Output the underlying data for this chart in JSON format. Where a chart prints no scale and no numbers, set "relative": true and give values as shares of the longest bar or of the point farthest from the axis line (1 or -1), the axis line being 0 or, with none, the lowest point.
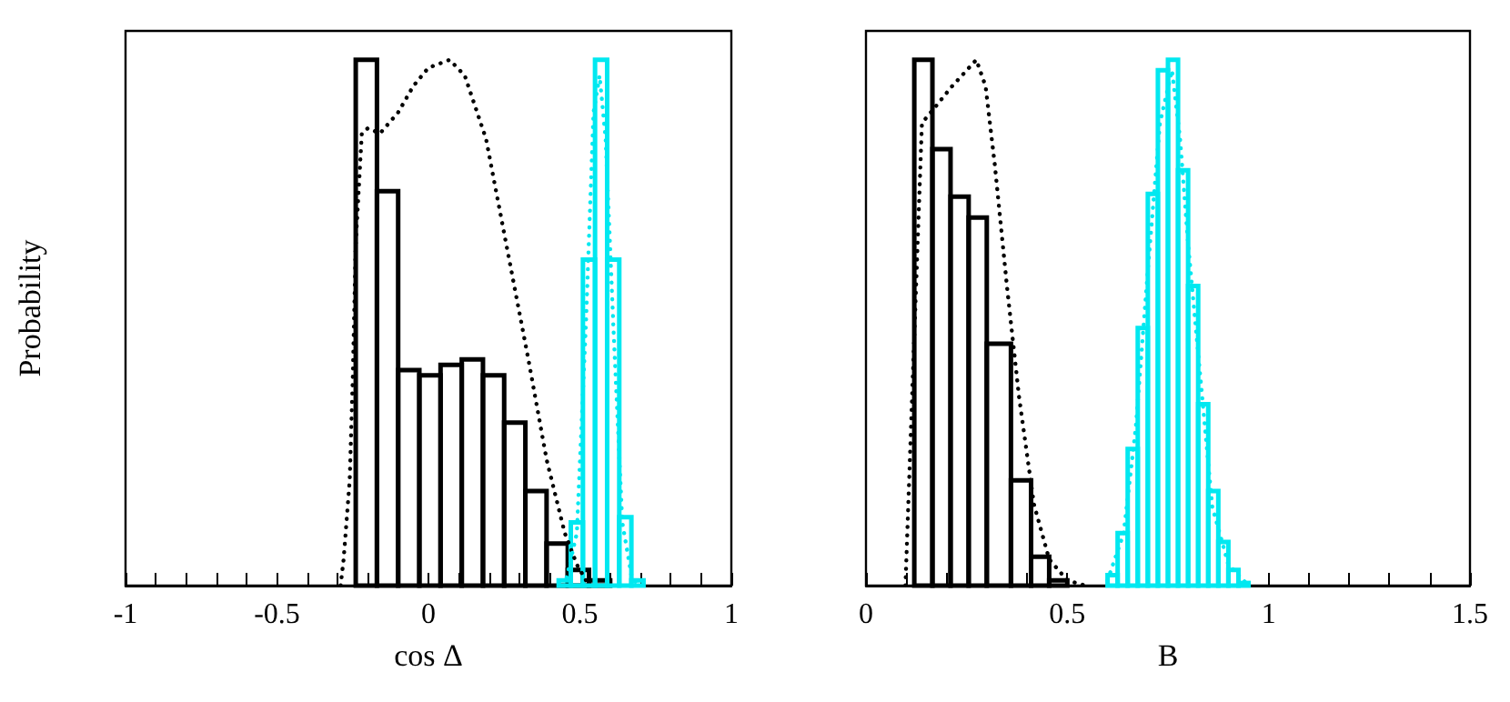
{
  "chart_data": [
    {
      "type": "histogram",
      "xlabel": "cos Δ",
      "ylabel": "Probability",
      "relative": true,
      "tick_labels": "x",
      "marker": "none",
      "xlim": [
        -1,
        1
      ],
      "xticks": [
        -1,
        {
          "value": -0.9,
          "label": null
        },
        {
          "value": -0.8,
          "label": null
        },
        {
          "value": -0.7,
          "label": null
        },
        {
          "value": -0.6,
          "label": null
        },
        -0.5,
        {
          "value": -0.4,
          "label": null
        },
        {
          "value": -0.3,
          "label": null
        },
        {
          "value": -0.2,
          "label": null
        },
        {
          "value": -0.1,
          "label": null
        },
        0,
        {
          "value": 0.1,
          "label": null
        },
        {
          "value": 0.2,
          "label": null
        },
        {
          "value": 0.3,
          "label": null
        },
        {
          "value": 0.4,
          "label": null
        },
        0.5,
        {
          "value": 0.6,
          "label": null
        },
        {
          "value": 0.7,
          "label": null
        },
        {
          "value": 0.8,
          "label": null
        },
        {
          "value": 0.9,
          "label": null
        },
        1
      ],
      "series": [
        {
          "color": "#000000",
          "bins": [
            -0.24,
            -0.17,
            -0.1,
            -0.03,
            0.04,
            0.11,
            0.18,
            0.25,
            0.32,
            0.39,
            0.46,
            0.53,
            0.6
          ],
          "values": [
            1.0,
            0.75,
            0.41,
            0.4,
            0.42,
            0.43,
            0.4,
            0.31,
            0.18,
            0.08,
            0.03,
            0.01
          ]
        },
        {
          "color": "#00e8f0",
          "bins": [
            0.43,
            0.47,
            0.51,
            0.55,
            0.59,
            0.63,
            0.67,
            0.71
          ],
          "values": [
            0.01,
            0.12,
            0.62,
            1.0,
            0.62,
            0.13,
            0.01
          ]
        },
        {
          "type": "line",
          "line_style": "dotted",
          "color": "#000000",
          "x": [
            -0.29,
            -0.28,
            -0.26,
            -0.25,
            -0.24,
            -0.22,
            -0.2,
            -0.16,
            -0.1,
            -0.05,
            0,
            0.07,
            0.12,
            0.19,
            0.26,
            0.33,
            0.39,
            0.45,
            0.49,
            0.53
          ],
          "values": [
            0,
            0.05,
            0.2,
            0.39,
            0.65,
            0.86,
            0.87,
            0.86,
            0.9,
            0.95,
            0.985,
            1.0,
            0.97,
            0.85,
            0.64,
            0.43,
            0.24,
            0.1,
            0.04,
            0
          ]
        },
        {
          "type": "line",
          "line_style": "dotted",
          "color": "#00e8f0",
          "x": [
            0.45,
            0.49,
            0.52,
            0.545,
            0.565,
            0.585,
            0.61,
            0.64,
            0.67,
            0.69
          ],
          "values": [
            0,
            0.1,
            0.5,
            0.9,
            0.97,
            0.85,
            0.5,
            0.12,
            0.02,
            0
          ]
        }
      ]
    },
    {
      "type": "histogram",
      "xlabel": "B",
      "relative": true,
      "tick_labels": "x",
      "marker": "none",
      "xlim": [
        0,
        1.5
      ],
      "xticks": [
        0,
        {
          "value": 0.1,
          "label": null
        },
        {
          "value": 0.2,
          "label": null
        },
        {
          "value": 0.3,
          "label": null
        },
        {
          "value": 0.4,
          "label": null
        },
        0.5,
        {
          "value": 0.6,
          "label": null
        },
        {
          "value": 0.7,
          "label": null
        },
        {
          "value": 0.8,
          "label": null
        },
        {
          "value": 0.9,
          "label": null
        },
        1,
        {
          "value": 1.1,
          "label": null
        },
        {
          "value": 1.2,
          "label": null
        },
        {
          "value": 1.3,
          "label": null
        },
        {
          "value": 1.4,
          "label": null
        },
        1.5
      ],
      "series": [
        {
          "color": "#000000",
          "bins": [
            0.12,
            0.165,
            0.21,
            0.255,
            0.3,
            0.36,
            0.41,
            0.455,
            0.5
          ],
          "values": [
            1.0,
            0.83,
            0.74,
            0.7,
            0.46,
            0.2,
            0.055,
            0.01
          ]
        },
        {
          "color": "#00e8f0",
          "bins": [
            0.6,
            0.625,
            0.65,
            0.675,
            0.7,
            0.725,
            0.75,
            0.775,
            0.8,
            0.825,
            0.85,
            0.875,
            0.9,
            0.925,
            0.95
          ],
          "values": [
            0.02,
            0.1,
            0.26,
            0.49,
            0.745,
            0.98,
            1.0,
            0.79,
            0.57,
            0.345,
            0.18,
            0.083,
            0.03,
            0.005
          ]
        },
        {
          "type": "line",
          "line_style": "dotted",
          "color": "#000000",
          "x": [
            0.098,
            0.116,
            0.139,
            0.161,
            0.214,
            0.274,
            0.297,
            0.32,
            0.35,
            0.38,
            0.417,
            0.455,
            0.5,
            0.545
          ],
          "values": [
            0,
            0.39,
            0.88,
            0.9,
            0.95,
            1.0,
            0.95,
            0.8,
            0.57,
            0.36,
            0.155,
            0.05,
            0.01,
            0
          ]
        },
        {
          "type": "line",
          "line_style": "dotted",
          "color": "#00e8f0",
          "x": [
            0.6,
            0.64,
            0.67,
            0.7,
            0.73,
            0.76,
            0.78,
            0.8,
            0.83,
            0.86,
            0.9,
            0.95
          ],
          "values": [
            0.01,
            0.1,
            0.3,
            0.6,
            0.88,
            0.98,
            0.85,
            0.65,
            0.4,
            0.15,
            0.04,
            0
          ]
        }
      ]
    }
  ]
}
